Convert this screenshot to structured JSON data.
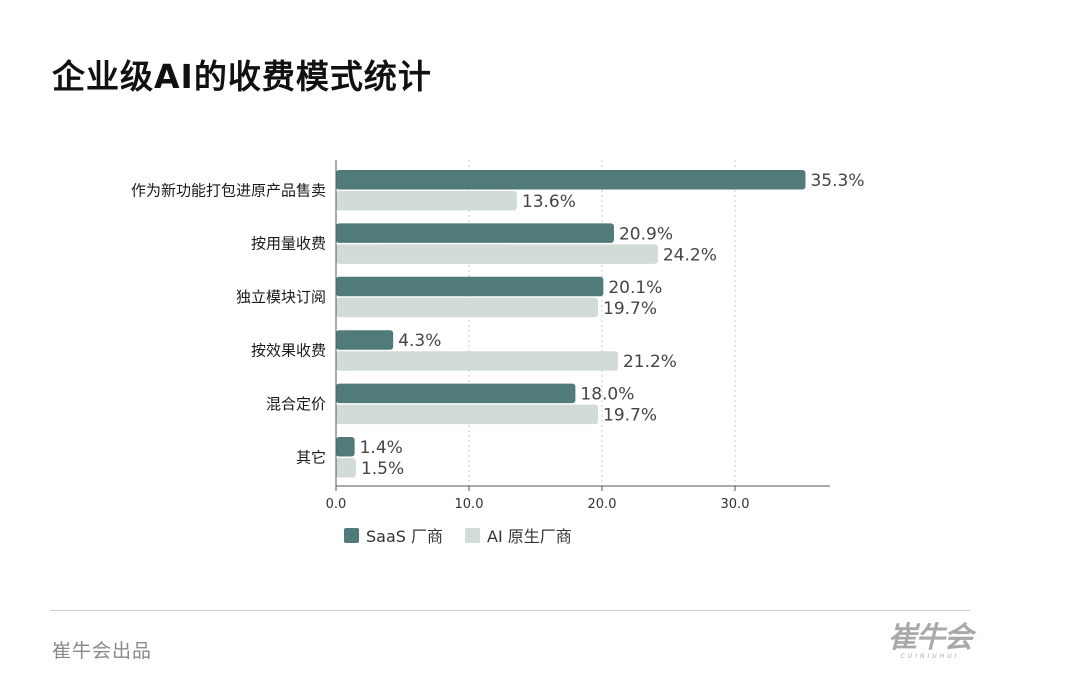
{
  "title": "企业级AI的收费模式统计",
  "chart_data": {
    "type": "bar",
    "orientation": "horizontal",
    "title": "企业级AI的收费模式统计",
    "categories": [
      "作为新功能打包进原产品售卖",
      "按用量收费",
      "独立模块订阅",
      "按效果收费",
      "混合定价",
      "其它"
    ],
    "series": [
      {
        "name": "SaaS 厂商",
        "values": [
          35.3,
          20.9,
          20.1,
          4.3,
          18.0,
          1.4
        ],
        "color": "#517b7b"
      },
      {
        "name": "AI 原生厂商",
        "values": [
          13.6,
          24.2,
          19.7,
          21.2,
          19.7,
          1.5
        ],
        "color": "#d2dcd6"
      }
    ],
    "value_suffix": "%",
    "xlim": [
      0,
      37
    ],
    "xticks": [
      "0.0",
      "10.0",
      "20.0",
      "30.0"
    ],
    "grid": true,
    "legend_position": "bottom"
  },
  "footer": {
    "credit": "崔牛会出品",
    "logo_text": "崔牛会",
    "logo_subtext": "CUINIUHUI"
  }
}
